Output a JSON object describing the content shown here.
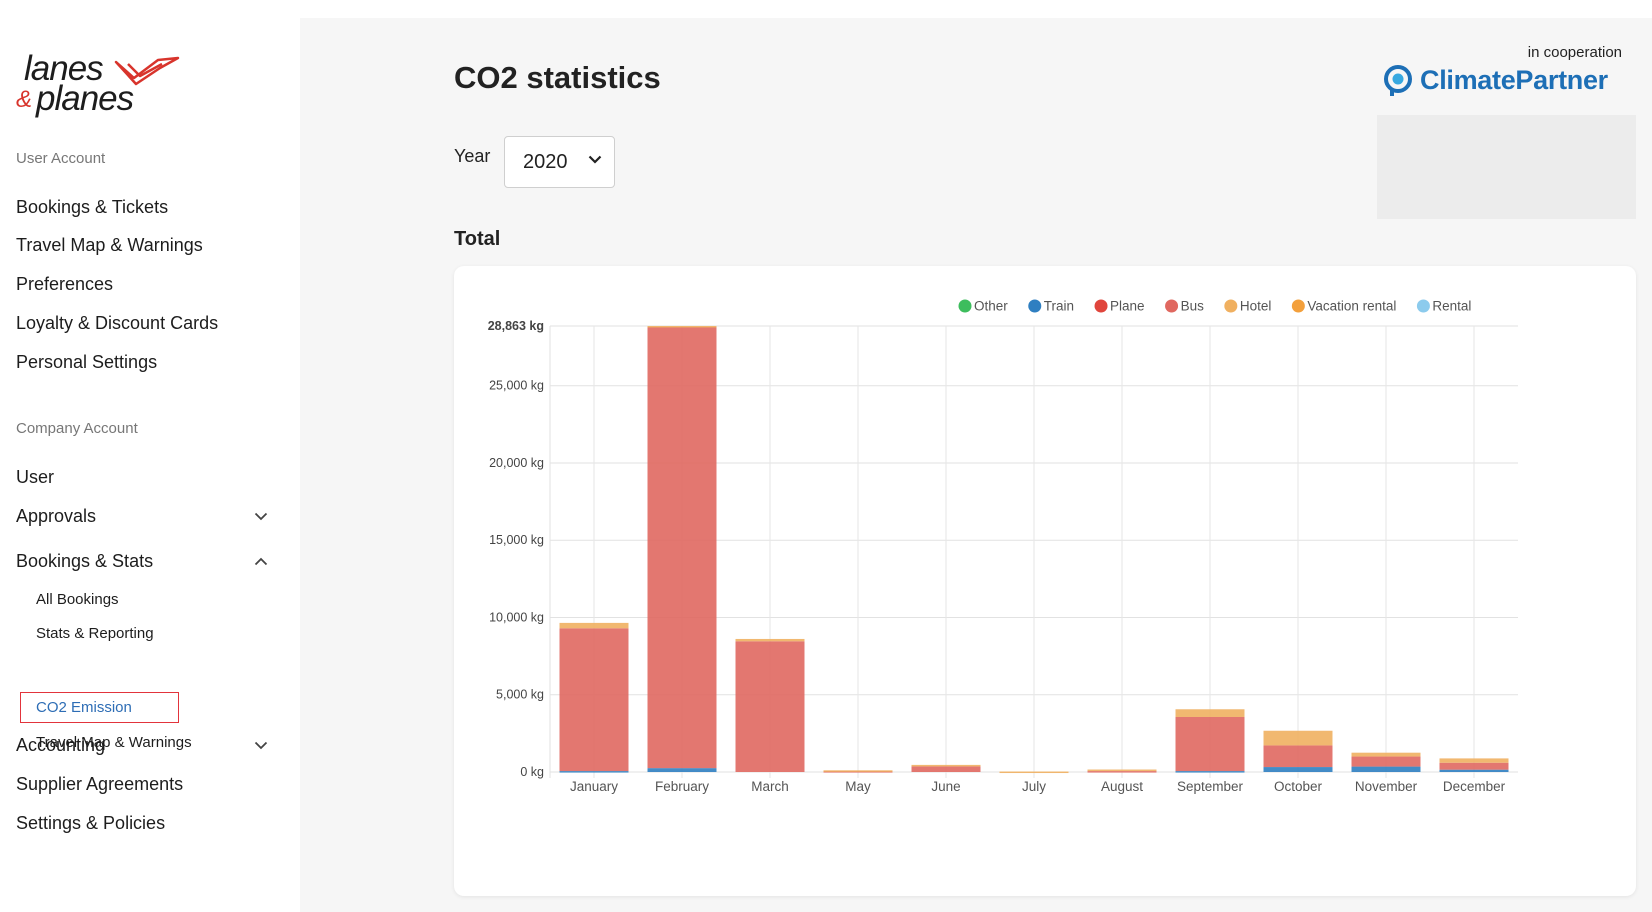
{
  "logo": {
    "line1": "lanes",
    "amp": "&",
    "line2": "planes"
  },
  "sidebar": {
    "user_account_label": "User Account",
    "user_items": [
      "Bookings & Tickets",
      "Travel Map & Warnings",
      "Preferences",
      "Loyalty & Discount Cards",
      "Personal Settings"
    ],
    "company_account_label": "Company Account",
    "company_items": {
      "user": "User",
      "approvals": "Approvals",
      "bookings_stats": "Bookings & Stats",
      "sub": [
        "All Bookings",
        "Stats & Reporting",
        "CO2 Emission",
        "Travel Map & Warnings"
      ],
      "accounting": "Accounting",
      "supplier": "Supplier Agreements",
      "settings": "Settings & Policies"
    }
  },
  "main": {
    "title": "CO2 statistics",
    "year_label": "Year",
    "year_value": "2020",
    "coop_label": "in cooperation",
    "partner_name": "ClimatePartner",
    "total_label": "Total"
  },
  "colors": {
    "accent_red": "#e2343c",
    "link_blue": "#2d6db5",
    "partner_blue": "#1d6fb6"
  },
  "chart_data": {
    "type": "bar",
    "stacked": true,
    "categories": [
      "January",
      "February",
      "March",
      "May",
      "June",
      "July",
      "August",
      "September",
      "October",
      "November",
      "December"
    ],
    "y_tick_labels": [
      "28,863 kg",
      "25,000 kg",
      "20,000 kg",
      "15,000 kg",
      "10,000 kg",
      "5,000 kg",
      "0 kg"
    ],
    "y_ticks": [
      28863,
      25000,
      20000,
      15000,
      10000,
      5000,
      0
    ],
    "ylim": [
      0,
      28863
    ],
    "legend_position": "top",
    "grid": true,
    "series": [
      {
        "name": "Other",
        "color": "#3dbd5d",
        "values": [
          0,
          0,
          0,
          0,
          0,
          0,
          0,
          0,
          0,
          0,
          0
        ]
      },
      {
        "name": "Train",
        "color": "#2f7fc1",
        "values": [
          60,
          250,
          0,
          0,
          0,
          0,
          0,
          60,
          320,
          350,
          150
        ]
      },
      {
        "name": "Plane",
        "color": "#e0453c",
        "values": [
          0,
          0,
          0,
          0,
          0,
          0,
          0,
          0,
          0,
          0,
          0
        ]
      },
      {
        "name": "Bus",
        "color": "#e06860",
        "values": [
          9240,
          28553,
          8460,
          60,
          360,
          0,
          60,
          3500,
          1400,
          650,
          450
        ]
      },
      {
        "name": "Hotel",
        "color": "#f0b060",
        "values": [
          350,
          60,
          150,
          50,
          100,
          30,
          100,
          500,
          950,
          250,
          280
        ]
      },
      {
        "name": "Vacation rental",
        "color": "#f3a03c",
        "values": [
          0,
          0,
          0,
          0,
          0,
          0,
          0,
          0,
          0,
          0,
          0
        ]
      },
      {
        "name": "Rental",
        "color": "#8ccbed",
        "values": [
          0,
          0,
          0,
          0,
          0,
          0,
          0,
          0,
          0,
          0,
          0
        ]
      }
    ]
  }
}
